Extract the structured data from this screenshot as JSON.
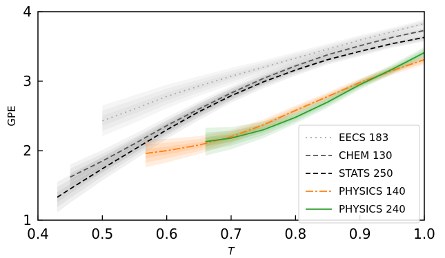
{
  "chart_data": {
    "type": "line",
    "xlabel": "T",
    "ylabel": "GPE",
    "xlim": [
      0.4,
      1.0
    ],
    "ylim": [
      1,
      4
    ],
    "x_ticks": [
      "0.4",
      "0.5",
      "0.6",
      "0.7",
      "0.8",
      "0.9",
      "1.0"
    ],
    "y_ticks": [
      "1",
      "2",
      "3",
      "4"
    ],
    "grid": false,
    "legend_position": "lower-right",
    "series": [
      {
        "name": "EECS 183",
        "color": "#aaaaaa",
        "linestyle": "dotted",
        "band_color": "#b4b4b4",
        "x": [
          0.5,
          0.55,
          0.6,
          0.65,
          0.7,
          0.75,
          0.8,
          0.85,
          0.9,
          0.95,
          1.0
        ],
        "y": [
          2.43,
          2.6,
          2.78,
          2.93,
          3.07,
          3.2,
          3.33,
          3.46,
          3.59,
          3.71,
          3.83
        ],
        "band": [
          0.22,
          0.2,
          0.17,
          0.14,
          0.12,
          0.1,
          0.09,
          0.08,
          0.07,
          0.06,
          0.06
        ]
      },
      {
        "name": "CHEM 130",
        "color": "#555555",
        "linestyle": "dashed",
        "band_color": "#999999",
        "x": [
          0.45,
          0.5,
          0.55,
          0.6,
          0.65,
          0.7,
          0.75,
          0.8,
          0.85,
          0.9,
          0.95,
          1.0
        ],
        "y": [
          1.62,
          1.85,
          2.1,
          2.36,
          2.6,
          2.83,
          3.04,
          3.22,
          3.38,
          3.51,
          3.63,
          3.73
        ],
        "band": [
          0.18,
          0.16,
          0.14,
          0.12,
          0.11,
          0.1,
          0.09,
          0.08,
          0.07,
          0.06,
          0.06,
          0.05
        ]
      },
      {
        "name": "STATS 250",
        "color": "#000000",
        "linestyle": "dashed",
        "band_color": "#888888",
        "x": [
          0.43,
          0.45,
          0.5,
          0.55,
          0.6,
          0.65,
          0.7,
          0.75,
          0.8,
          0.85,
          0.9,
          0.95,
          1.0
        ],
        "y": [
          1.33,
          1.45,
          1.74,
          2.02,
          2.3,
          2.56,
          2.79,
          2.99,
          3.16,
          3.31,
          3.43,
          3.54,
          3.63
        ],
        "band": [
          0.22,
          0.2,
          0.17,
          0.15,
          0.13,
          0.12,
          0.1,
          0.09,
          0.08,
          0.07,
          0.07,
          0.06,
          0.06
        ]
      },
      {
        "name": "PHYSICS 140",
        "color": "#ff7f0e",
        "linestyle": "dashdot",
        "band_color": "#ff7f0e",
        "x": [
          0.567,
          0.6,
          0.65,
          0.7,
          0.75,
          0.8,
          0.85,
          0.9,
          0.95,
          1.0
        ],
        "y": [
          1.96,
          2.0,
          2.08,
          2.2,
          2.37,
          2.58,
          2.78,
          2.98,
          3.15,
          3.31
        ],
        "band": [
          0.2,
          0.17,
          0.13,
          0.1,
          0.08,
          0.07,
          0.06,
          0.06,
          0.06,
          0.07
        ]
      },
      {
        "name": "PHYSICS 240",
        "color": "#2ca02c",
        "linestyle": "solid",
        "band_color": "#2ca02c",
        "x": [
          0.66,
          0.7,
          0.75,
          0.8,
          0.85,
          0.9,
          0.95,
          1.0
        ],
        "y": [
          2.13,
          2.18,
          2.3,
          2.48,
          2.7,
          2.95,
          3.17,
          3.41
        ],
        "band": [
          0.2,
          0.16,
          0.12,
          0.09,
          0.08,
          0.07,
          0.07,
          0.08
        ]
      }
    ]
  }
}
